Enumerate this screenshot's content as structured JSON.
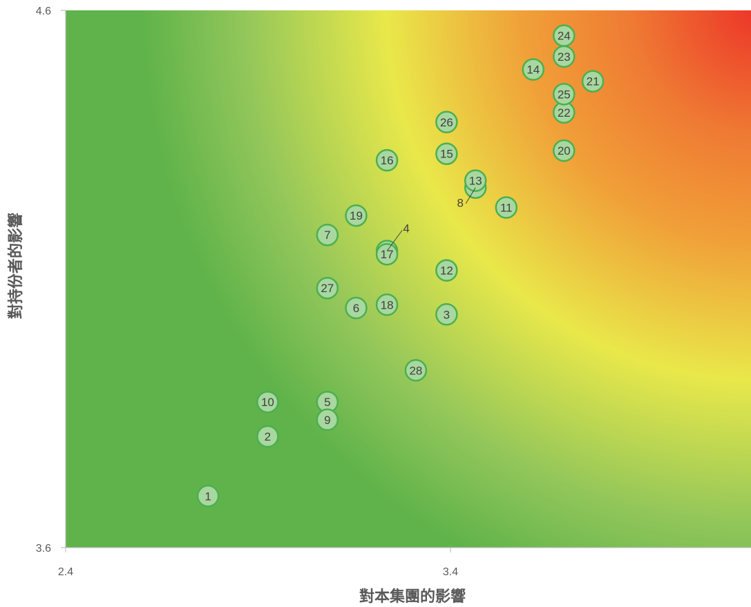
{
  "chart_data": {
    "type": "scatter",
    "xlabel": "對本集團的影響",
    "ylabel": "對持份者的影響",
    "xlim": [
      2.4,
      4.18
    ],
    "ylim": [
      3.6,
      4.6
    ],
    "x_ticks": [
      "2.4",
      "3.4"
    ],
    "y_ticks": [
      "3.6",
      "4.6"
    ],
    "background": "heatmap gradient from green (low impact, bottom-left) through yellow to red (high impact, top-right)",
    "colors": {
      "green": "#5fb34a",
      "light_green": "#92c65a",
      "yellow": "#e9e84a",
      "orange": "#f0a038",
      "red": "#ec3328",
      "marker_fill": "#a8d8a0",
      "marker_stroke": "#4caf50",
      "axis": "#bfbfbf",
      "text": "#595959"
    },
    "points": [
      {
        "label": "1",
        "x": 2.77,
        "y": 3.696
      },
      {
        "label": "2",
        "x": 2.925,
        "y": 3.807
      },
      {
        "label": "3",
        "x": 3.39,
        "y": 4.034
      },
      {
        "label": "4",
        "x": 3.235,
        "y": 4.152,
        "label_outside": true
      },
      {
        "label": "5",
        "x": 3.08,
        "y": 3.871
      },
      {
        "label": "6",
        "x": 3.155,
        "y": 4.046
      },
      {
        "label": "7",
        "x": 3.08,
        "y": 4.182
      },
      {
        "label": "8",
        "x": 3.465,
        "y": 4.27,
        "label_outside": true
      },
      {
        "label": "9",
        "x": 3.08,
        "y": 3.838
      },
      {
        "label": "10",
        "x": 2.925,
        "y": 3.871
      },
      {
        "label": "11",
        "x": 3.545,
        "y": 4.233
      },
      {
        "label": "12",
        "x": 3.39,
        "y": 4.116
      },
      {
        "label": "13",
        "x": 3.465,
        "y": 4.283
      },
      {
        "label": "14",
        "x": 3.615,
        "y": 4.49
      },
      {
        "label": "15",
        "x": 3.39,
        "y": 4.333
      },
      {
        "label": "16",
        "x": 3.235,
        "y": 4.321
      },
      {
        "label": "17",
        "x": 3.235,
        "y": 4.146
      },
      {
        "label": "18",
        "x": 3.235,
        "y": 4.052
      },
      {
        "label": "19",
        "x": 3.155,
        "y": 4.218
      },
      {
        "label": "20",
        "x": 3.695,
        "y": 4.339
      },
      {
        "label": "21",
        "x": 3.77,
        "y": 4.468
      },
      {
        "label": "22",
        "x": 3.695,
        "y": 4.41
      },
      {
        "label": "23",
        "x": 3.695,
        "y": 4.514
      },
      {
        "label": "24",
        "x": 3.695,
        "y": 4.553
      },
      {
        "label": "25",
        "x": 3.695,
        "y": 4.444
      },
      {
        "label": "26",
        "x": 3.39,
        "y": 4.392
      },
      {
        "label": "27",
        "x": 3.08,
        "y": 4.083
      },
      {
        "label": "28",
        "x": 3.31,
        "y": 3.93
      }
    ]
  }
}
